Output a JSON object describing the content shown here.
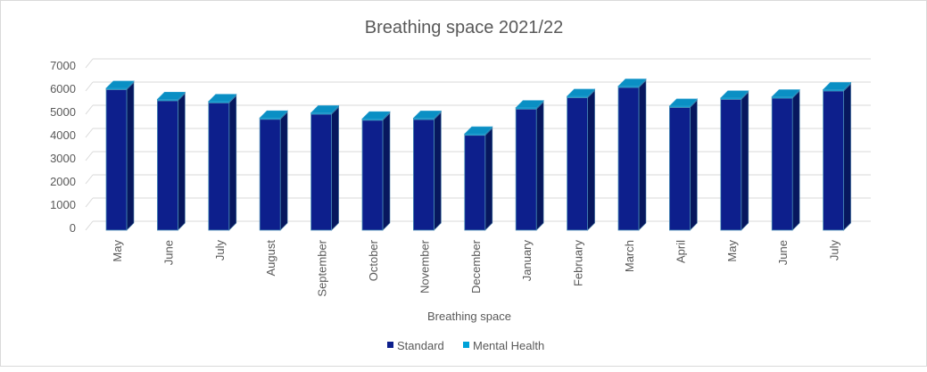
{
  "chart_data": {
    "type": "bar",
    "stacked": true,
    "three_d": true,
    "title": "Breathing space 2021/22",
    "xlabel": "Breathing space",
    "ylabel": "",
    "ylim": [
      0,
      7000
    ],
    "yticks": [
      0,
      1000,
      2000,
      3000,
      4000,
      5000,
      6000,
      7000
    ],
    "grid": true,
    "legend_position": "bottom",
    "categories": [
      "May",
      "June",
      "July",
      "August",
      "September",
      "October",
      "November",
      "December",
      "January",
      "February",
      "March",
      "April",
      "May",
      "June",
      "July"
    ],
    "series": [
      {
        "name": "Standard",
        "color": "#0d1f8c",
        "values": [
          6060,
          5580,
          5490,
          4780,
          5000,
          4740,
          4770,
          4090,
          5220,
          5710,
          6150,
          5290,
          5640,
          5690,
          6000
        ]
      },
      {
        "name": "Mental Health",
        "color": "#00a2d8",
        "values": [
          60,
          60,
          60,
          60,
          60,
          60,
          60,
          60,
          60,
          60,
          60,
          60,
          60,
          60,
          60
        ]
      }
    ]
  }
}
